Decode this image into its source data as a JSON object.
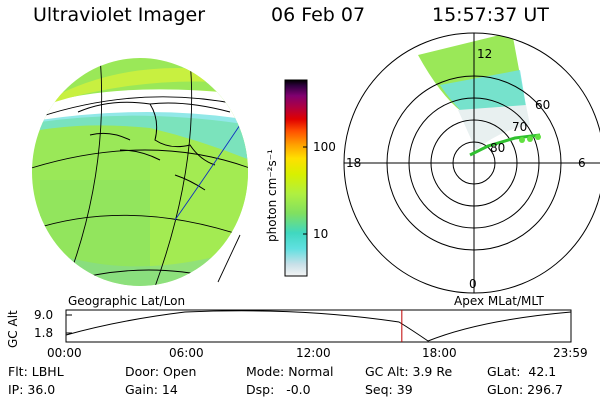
{
  "header": {
    "instrument": "Ultraviolet Imager",
    "date": "06 Feb 07",
    "time": "15:57:37 UT"
  },
  "colorbar": {
    "unit_label": "photon cm⁻²s⁻¹",
    "ticks": [
      "100",
      "10"
    ],
    "colors": [
      "#f4f4f4",
      "#c8e0e8",
      "#7ce8e8",
      "#40e0d0",
      "#80e060",
      "#b0f040",
      "#d8f000",
      "#ffe000",
      "#ffa000",
      "#ff5000",
      "#e00000",
      "#b00040",
      "#800070",
      "#300040",
      "#000000"
    ]
  },
  "left_panel": {
    "caption": "Geographic Lat/Lon"
  },
  "right_panel": {
    "caption": "Apex MLat/MLT",
    "mlt_labels": {
      "top": "12",
      "left": "18",
      "right": "6",
      "bottom": "0"
    },
    "lat_labels": [
      "60",
      "70",
      "80"
    ]
  },
  "altitude_plot": {
    "ylabel": "GC Alt",
    "yticks": [
      "9.0",
      "1.8"
    ],
    "xticks": [
      "00:00",
      "06:00",
      "12:00",
      "18:00",
      "23:59"
    ],
    "current_time_hours": 15.96,
    "cursor_color": "#c00000"
  },
  "status": {
    "flt": "Flt: LBHL",
    "ip": "IP: 36.0",
    "door": "Door: Open",
    "gain": "Gain: 14",
    "mode": "Mode: Normal",
    "dsp": "Dsp:   -0.0",
    "gcalt": "GC Alt: 3.9 Re",
    "seq": "Seq: 39",
    "glat": "GLat:  42.1",
    "glon": "GLon: 296.7"
  }
}
